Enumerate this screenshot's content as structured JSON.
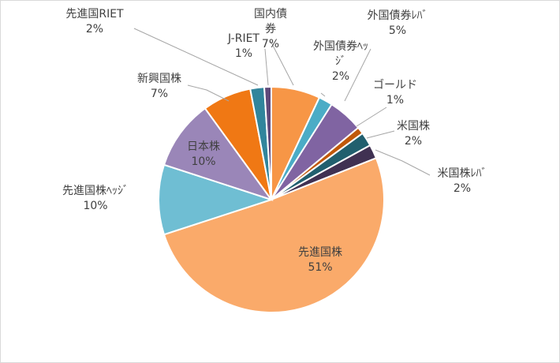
{
  "chart_data": {
    "type": "pie",
    "title": "",
    "start_angle_deg": 0,
    "direction": "clockwise",
    "slices": [
      {
        "name": "国内債券",
        "name_lines": [
          "国内債",
          "券"
        ],
        "value": 7,
        "label": "7%",
        "color": "#F79646"
      },
      {
        "name": "外国債券ﾍｯｼﾞ",
        "name_lines": [
          "外国債券ﾍｯ",
          "ｼﾞ"
        ],
        "value": 2,
        "label": "2%",
        "color": "#4BACC6"
      },
      {
        "name": "外国債券ﾚﾊﾞ",
        "name_lines": [
          "外国債券ﾚﾊﾞ"
        ],
        "value": 5,
        "label": "5%",
        "color": "#8064A2"
      },
      {
        "name": "ゴールド",
        "name_lines": [
          "ゴールド"
        ],
        "value": 1,
        "label": "1%",
        "color": "#C0580A"
      },
      {
        "name": "米国株",
        "name_lines": [
          "米国株"
        ],
        "value": 2,
        "label": "2%",
        "color": "#215F6E"
      },
      {
        "name": "米国株ﾚﾊﾞ",
        "name_lines": [
          "米国株ﾚﾊﾞ"
        ],
        "value": 2,
        "label": "2%",
        "color": "#403152"
      },
      {
        "name": "先進国株",
        "name_lines": [
          "先進国株"
        ],
        "value": 51,
        "label": "51%",
        "color": "#FAAA6A"
      },
      {
        "name": "先進国株ﾍｯｼﾞ",
        "name_lines": [
          "先進国株ﾍｯｼﾞ"
        ],
        "value": 10,
        "label": "10%",
        "color": "#6FBED3"
      },
      {
        "name": "日本株",
        "name_lines": [
          "日本株"
        ],
        "value": 10,
        "label": "10%",
        "color": "#9A86B8"
      },
      {
        "name": "新興国株",
        "name_lines": [
          "新興国株"
        ],
        "value": 7,
        "label": "7%",
        "color": "#F07814"
      },
      {
        "name": "先進国RIET",
        "name_lines": [
          "先進国RIET"
        ],
        "value": 2,
        "label": "2%",
        "color": "#31859C"
      },
      {
        "name": "J-RIET",
        "name_lines": [
          "J-RIET"
        ],
        "value": 1,
        "label": "1%",
        "color": "#5F497A"
      }
    ]
  }
}
